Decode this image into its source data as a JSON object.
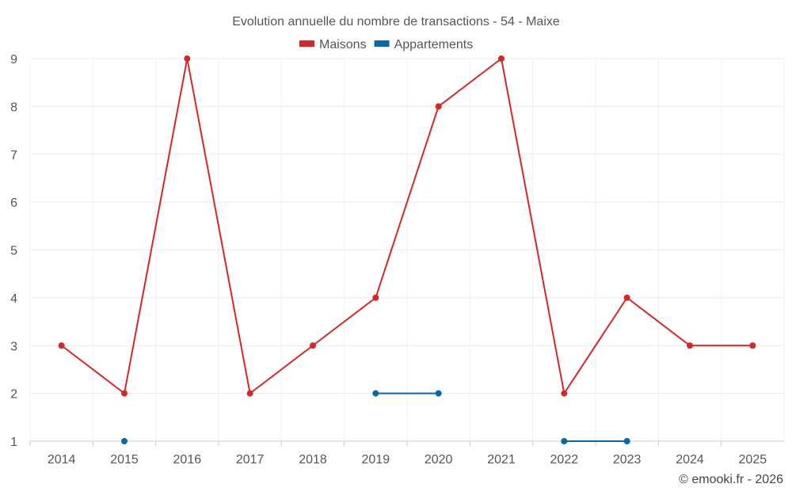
{
  "chart_data": {
    "type": "line",
    "title": "Evolution annuelle du nombre de transactions - 54 - Maixe",
    "categories": [
      "2014",
      "2015",
      "2016",
      "2017",
      "2018",
      "2019",
      "2020",
      "2021",
      "2022",
      "2023",
      "2024",
      "2025"
    ],
    "ylim": [
      1,
      9
    ],
    "yticks": [
      1,
      2,
      3,
      4,
      5,
      6,
      7,
      8,
      9
    ],
    "grid": true,
    "legend_position": "top-center",
    "series": [
      {
        "name": "Maisons",
        "color": "#d62728",
        "values": [
          3,
          2,
          9,
          2,
          3,
          4,
          8,
          9,
          2,
          4,
          3,
          3
        ]
      },
      {
        "name": "Appartements",
        "color": "#0868a8",
        "values": [
          null,
          1,
          null,
          null,
          null,
          2,
          2,
          null,
          1,
          1,
          null,
          null
        ]
      }
    ],
    "credit": "© emooki.fr - 2026"
  }
}
